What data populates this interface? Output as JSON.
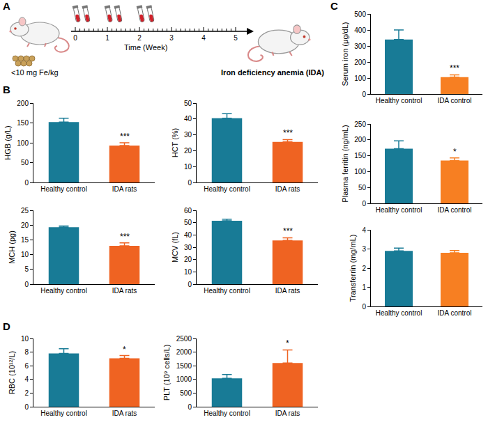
{
  "chart_data": [
    {
      "type": "bar",
      "ylabel": "HGB (g/L)",
      "categories": [
        "Healthy control",
        "IDA rats"
      ],
      "values": [
        152,
        93
      ],
      "errors": [
        10,
        7
      ],
      "colors": [
        "#187b96",
        "#ef6322"
      ],
      "ylim": [
        0,
        200
      ],
      "yticks": [
        0,
        50,
        100,
        150,
        200
      ],
      "annotations": [
        {
          "x": "IDA rats",
          "text": "***"
        }
      ]
    },
    {
      "type": "bar",
      "ylabel": "HCT (%)",
      "categories": [
        "Healthy control",
        "IDA rats"
      ],
      "values": [
        40.5,
        25.5
      ],
      "errors": [
        2.8,
        1.5
      ],
      "colors": [
        "#187b96",
        "#ef6322"
      ],
      "ylim": [
        0,
        50
      ],
      "yticks": [
        0,
        10,
        20,
        30,
        40,
        50
      ],
      "annotations": [
        {
          "x": "IDA rats",
          "text": "***"
        }
      ]
    },
    {
      "type": "bar",
      "ylabel": "MCH (pg)",
      "categories": [
        "Healthy control",
        "IDA rats"
      ],
      "values": [
        19.3,
        13
      ],
      "errors": [
        0.4,
        1
      ],
      "colors": [
        "#187b96",
        "#ef6322"
      ],
      "ylim": [
        0,
        25
      ],
      "yticks": [
        0,
        5,
        10,
        15,
        20,
        25
      ],
      "annotations": [
        {
          "x": "IDA rats",
          "text": "***"
        }
      ]
    },
    {
      "type": "bar",
      "ylabel": "MCV (fL)",
      "categories": [
        "Healthy control",
        "IDA rats"
      ],
      "values": [
        51.5,
        35.5
      ],
      "errors": [
        1.3,
        2.2
      ],
      "colors": [
        "#187b96",
        "#ef6322"
      ],
      "ylim": [
        0,
        60
      ],
      "yticks": [
        0,
        10,
        20,
        30,
        40,
        50,
        60
      ],
      "annotations": [
        {
          "x": "IDA rats",
          "text": "***"
        }
      ]
    },
    {
      "type": "bar",
      "ylabel": "Serum iron (μg/dL)",
      "categories": [
        "Healthy control",
        "IDA control"
      ],
      "values": [
        340,
        105
      ],
      "errors": [
        60,
        15
      ],
      "colors": [
        "#187b96",
        "#f77f22"
      ],
      "ylim": [
        0,
        500
      ],
      "yticks": [
        0,
        100,
        200,
        300,
        400,
        500
      ],
      "annotations": [
        {
          "x": "IDA control",
          "text": "***"
        }
      ]
    },
    {
      "type": "bar",
      "ylabel": "Plasma ferritin (ng/mL)",
      "categories": [
        "Healthy control",
        "IDA control"
      ],
      "values": [
        172,
        135
      ],
      "errors": [
        25,
        8
      ],
      "colors": [
        "#187b96",
        "#f77f22"
      ],
      "ylim": [
        0,
        250
      ],
      "yticks": [
        0,
        50,
        100,
        150,
        200,
        250
      ],
      "annotations": [
        {
          "x": "IDA control",
          "text": "*"
        }
      ]
    },
    {
      "type": "bar",
      "ylabel": "Transferrin (mg/mL)",
      "categories": [
        "Healthy control",
        "IDA control"
      ],
      "values": [
        2.9,
        2.8
      ],
      "errors": [
        0.15,
        0.12
      ],
      "colors": [
        "#187b96",
        "#f77f22"
      ],
      "ylim": [
        0,
        4
      ],
      "yticks": [
        0,
        1,
        2,
        3,
        4
      ],
      "annotations": []
    },
    {
      "type": "bar",
      "ylabel": "RBC (10¹²/L)",
      "categories": [
        "Healthy control",
        "IDA rats"
      ],
      "values": [
        7.8,
        7.1
      ],
      "errors": [
        0.7,
        0.4
      ],
      "colors": [
        "#187b96",
        "#ef6322"
      ],
      "ylim": [
        0,
        10
      ],
      "yticks": [
        0,
        2,
        4,
        6,
        8,
        10
      ],
      "annotations": [
        {
          "x": "IDA rats",
          "text": "*"
        }
      ]
    },
    {
      "type": "bar",
      "ylabel": "PLT (10⁹ cells/L)",
      "categories": [
        "Healthy control",
        "IDA rats"
      ],
      "values": [
        1040,
        1600
      ],
      "errors": [
        140,
        480
      ],
      "colors": [
        "#187b96",
        "#ef6322"
      ],
      "ylim": [
        0,
        2500
      ],
      "yticks": [
        0,
        500,
        1000,
        1500,
        2000,
        2500
      ],
      "annotations": [
        {
          "x": "IDA rats",
          "text": "*"
        }
      ]
    }
  ],
  "panel_labels": [
    "A",
    "B",
    "C",
    "D"
  ],
  "diagram": {
    "dose_label": "<10 mg Fe/kg",
    "time_axis_label": "Time (Week)",
    "time_ticks": [
      0,
      1,
      2,
      3,
      4,
      5
    ],
    "sampling_weeks": [
      0,
      0.3,
      1,
      1.3,
      2,
      2.3
    ],
    "outcome_label": "Iron deficiency anemia (IDA)"
  }
}
